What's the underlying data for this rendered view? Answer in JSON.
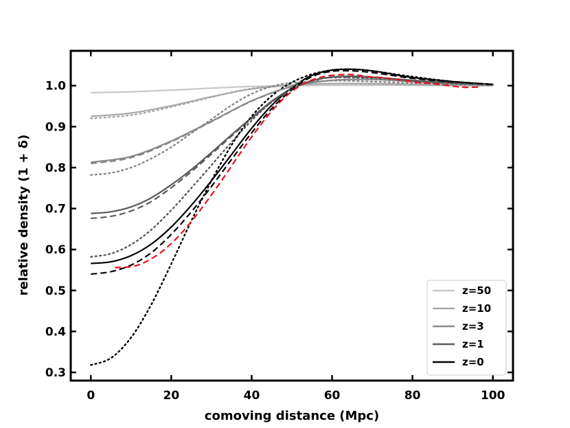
{
  "chart_data": {
    "type": "line",
    "title": "",
    "xlabel": "comoving distance (Mpc)",
    "ylabel": "relative density (1 + δ)",
    "xlim": [
      -5,
      105
    ],
    "ylim": [
      0.28,
      1.085
    ],
    "xticks": [
      0,
      20,
      40,
      60,
      80,
      100
    ],
    "yticks": [
      0.3,
      0.4,
      0.5,
      0.6,
      0.7,
      0.8,
      0.9,
      1.0
    ],
    "grid": false,
    "legend_position": "bottom-right",
    "series": [
      {
        "name": "z=50",
        "style": "solid",
        "color": "#c8c8c8",
        "in_legend": true,
        "x": [
          0,
          10,
          20,
          30,
          40,
          50,
          60,
          70,
          80,
          90,
          100
        ],
        "y": [
          0.983,
          0.985,
          0.989,
          0.994,
          0.998,
          1.0,
          1.001,
          1.001,
          1.001,
          1.0,
          1.0
        ]
      },
      {
        "name": "z=10",
        "style": "solid",
        "color": "#a8a8a8",
        "in_legend": true,
        "x": [
          0,
          10,
          20,
          30,
          40,
          50,
          60,
          70,
          80,
          90,
          100
        ],
        "y": [
          0.925,
          0.933,
          0.951,
          0.973,
          0.992,
          1.001,
          1.005,
          1.005,
          1.003,
          1.001,
          1.0
        ]
      },
      {
        "name": "z=3",
        "style": "solid",
        "color": "#888888",
        "in_legend": true,
        "x": [
          0,
          10,
          20,
          30,
          40,
          50,
          60,
          70,
          80,
          90,
          100
        ],
        "y": [
          0.813,
          0.827,
          0.865,
          0.913,
          0.963,
          0.998,
          1.013,
          1.015,
          1.01,
          1.005,
          1.002
        ]
      },
      {
        "name": "z=1",
        "style": "solid",
        "color": "#5a5a5a",
        "in_legend": true,
        "x": [
          0,
          5,
          10,
          15,
          20,
          25,
          30,
          35,
          40,
          45,
          50,
          55,
          60,
          65,
          70,
          75,
          80,
          90,
          100
        ],
        "y": [
          0.688,
          0.692,
          0.704,
          0.726,
          0.758,
          0.795,
          0.837,
          0.88,
          0.922,
          0.962,
          0.993,
          1.012,
          1.021,
          1.023,
          1.021,
          1.017,
          1.013,
          1.007,
          1.003
        ]
      },
      {
        "name": "z=0",
        "style": "solid",
        "color": "#000000",
        "in_legend": true,
        "x": [
          0,
          5,
          10,
          15,
          20,
          25,
          30,
          35,
          40,
          45,
          50,
          55,
          60,
          65,
          70,
          75,
          80,
          90,
          100
        ],
        "y": [
          0.566,
          0.57,
          0.585,
          0.613,
          0.655,
          0.708,
          0.768,
          0.832,
          0.896,
          0.952,
          0.995,
          1.025,
          1.038,
          1.04,
          1.036,
          1.028,
          1.02,
          1.01,
          1.003
        ]
      },
      {
        "name": "z=10 (dotted)",
        "style": "dotted",
        "color": "#a8a8a8",
        "in_legend": false,
        "x": [
          0,
          10,
          20,
          30,
          40,
          50,
          60,
          70,
          80,
          90,
          100
        ],
        "y": [
          0.92,
          0.928,
          0.948,
          0.972,
          0.993,
          1.002,
          1.005,
          1.004,
          1.002,
          1.001,
          1.0
        ]
      },
      {
        "name": "z=3 (dotted)",
        "style": "dotted",
        "color": "#888888",
        "in_legend": false,
        "x": [
          0,
          5,
          10,
          15,
          20,
          25,
          30,
          35,
          40,
          45,
          50,
          60,
          70,
          80,
          90,
          100
        ],
        "y": [
          0.782,
          0.787,
          0.8,
          0.822,
          0.85,
          0.884,
          0.918,
          0.952,
          0.98,
          0.998,
          1.007,
          1.012,
          1.01,
          1.006,
          1.003,
          1.001
        ]
      },
      {
        "name": "z=1 (dotted)",
        "style": "dotted",
        "color": "#5a5a5a",
        "in_legend": false,
        "x": [
          0,
          5,
          10,
          15,
          20,
          25,
          30,
          35,
          40,
          45,
          50,
          55,
          60,
          70,
          80,
          90,
          100
        ],
        "y": [
          0.582,
          0.59,
          0.612,
          0.648,
          0.696,
          0.75,
          0.806,
          0.862,
          0.915,
          0.96,
          0.993,
          1.012,
          1.02,
          1.018,
          1.01,
          1.005,
          1.002
        ]
      },
      {
        "name": "z=0 (dotted)",
        "style": "dotted",
        "color": "#000000",
        "in_legend": false,
        "x": [
          0,
          5,
          10,
          15,
          20,
          25,
          30,
          35,
          40,
          45,
          50,
          55,
          60,
          65,
          70,
          80,
          90,
          100
        ],
        "y": [
          0.318,
          0.335,
          0.385,
          0.465,
          0.565,
          0.67,
          0.768,
          0.855,
          0.925,
          0.975,
          1.008,
          1.028,
          1.038,
          1.04,
          1.036,
          1.022,
          1.01,
          1.003
        ]
      },
      {
        "name": "z=3 (dashed)",
        "style": "dashed",
        "color": "#888888",
        "in_legend": false,
        "x": [
          0,
          10,
          20,
          30,
          40,
          50,
          60,
          70,
          80,
          90,
          100
        ],
        "y": [
          0.81,
          0.824,
          0.863,
          0.912,
          0.962,
          0.998,
          1.013,
          1.015,
          1.01,
          1.005,
          1.002
        ]
      },
      {
        "name": "z=1 (dashed)",
        "style": "dashed",
        "color": "#5a5a5a",
        "in_legend": false,
        "x": [
          0,
          5,
          10,
          15,
          20,
          25,
          30,
          35,
          40,
          45,
          50,
          55,
          60,
          70,
          80,
          90,
          100
        ],
        "y": [
          0.676,
          0.681,
          0.694,
          0.717,
          0.751,
          0.79,
          0.833,
          0.877,
          0.92,
          0.96,
          0.992,
          1.011,
          1.02,
          1.02,
          1.012,
          1.006,
          1.003
        ]
      },
      {
        "name": "z=0 (dashed)",
        "style": "dashed",
        "color": "#000000",
        "in_legend": false,
        "x": [
          0,
          5,
          10,
          15,
          20,
          25,
          30,
          35,
          40,
          45,
          50,
          55,
          60,
          65,
          70,
          75,
          80,
          90,
          100
        ],
        "y": [
          0.54,
          0.546,
          0.562,
          0.592,
          0.637,
          0.692,
          0.754,
          0.82,
          0.885,
          0.944,
          0.99,
          1.022,
          1.035,
          1.036,
          1.032,
          1.025,
          1.018,
          1.009,
          1.003
        ]
      },
      {
        "name": "simulation (red dashed)",
        "style": "dashed",
        "color": "#e8101a",
        "in_legend": false,
        "x": [
          6,
          10,
          13,
          17,
          21,
          25,
          29,
          33,
          37,
          41,
          45,
          49,
          53,
          57,
          61,
          65,
          69,
          73,
          77,
          81,
          85,
          89,
          93,
          97
        ],
        "y": [
          0.556,
          0.558,
          0.567,
          0.59,
          0.624,
          0.668,
          0.72,
          0.775,
          0.833,
          0.888,
          0.938,
          0.978,
          1.005,
          1.02,
          1.026,
          1.027,
          1.022,
          1.019,
          1.014,
          1.008,
          1.005,
          1.0,
          0.996,
          0.997
        ]
      }
    ]
  }
}
